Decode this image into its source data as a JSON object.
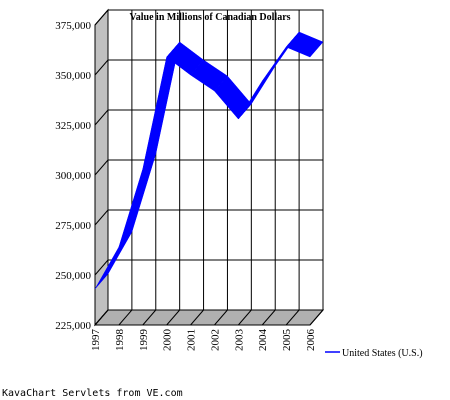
{
  "footer": "KavaChart Servlets from VE.com",
  "chart_data": {
    "type": "area",
    "title": "Value in Millions of Canadian Dollars",
    "xlabel": "",
    "ylabel": "",
    "categories": [
      "1997",
      "1998",
      "1999",
      "2000",
      "2001",
      "2002",
      "2003",
      "2004",
      "2005",
      "2006"
    ],
    "series": [
      {
        "name": "United States (U.S.)",
        "values": [
          243000,
          264000,
          303000,
          359000,
          350000,
          342000,
          328000,
          347000,
          364000,
          359000
        ]
      }
    ],
    "ylim": [
      225000,
      375000
    ],
    "yticks": [
      225000,
      250000,
      275000,
      300000,
      325000,
      350000,
      375000
    ],
    "ytick_labels": [
      "225,000",
      "250,000",
      "275,000",
      "300,000",
      "325,000",
      "350,000",
      "375,000"
    ],
    "grid": true,
    "three_d": true,
    "legend_position": "right",
    "colors": {
      "series": "#0000ff",
      "wall": "#c0c0c0",
      "floor": "#b0b0b0",
      "grid": "#000000"
    }
  }
}
